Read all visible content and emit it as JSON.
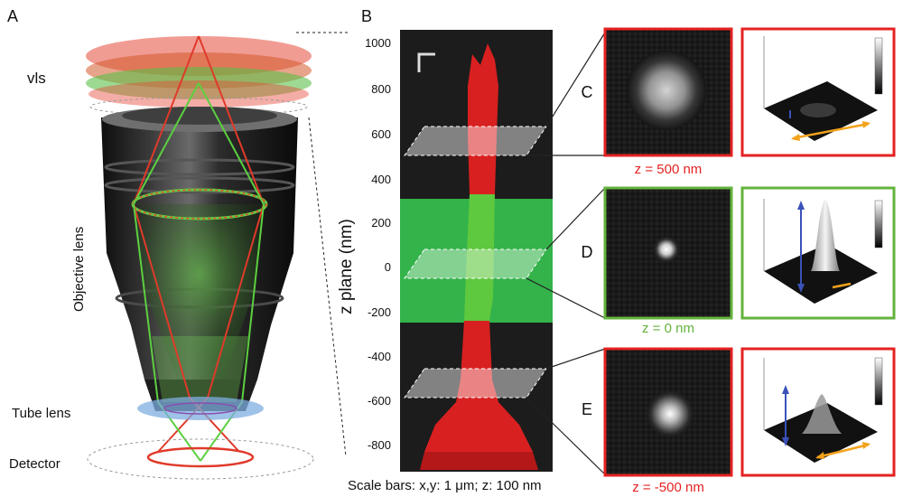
{
  "panels": {
    "a": {
      "label": "A"
    },
    "b": {
      "label": "B"
    },
    "c": {
      "label": "C"
    },
    "d": {
      "label": "D"
    },
    "e": {
      "label": "E"
    }
  },
  "panel_a": {
    "vls": "vls",
    "objective": "Objective lens",
    "tube": "Tube lens",
    "detector": "Detector"
  },
  "panel_b": {
    "axis_label": "z plane (nm)",
    "ticks": [
      "1000",
      "800",
      "600",
      "400",
      "200",
      "0",
      "-200",
      "-400",
      "-600",
      "-800"
    ],
    "scale_text": "Scale bars: x,y: 1 μm; z: 100 nm"
  },
  "planes": [
    {
      "z": "z = 500 nm",
      "color": "#e52222"
    },
    {
      "z": "z = 0 nm",
      "color": "#63b33c"
    },
    {
      "z": "z = -500 nm",
      "color": "#e52222"
    }
  ],
  "colors": {
    "red": "#e52222",
    "green": "#63b33c",
    "orange": "#f3a21b",
    "blue": "#3a52b8"
  }
}
